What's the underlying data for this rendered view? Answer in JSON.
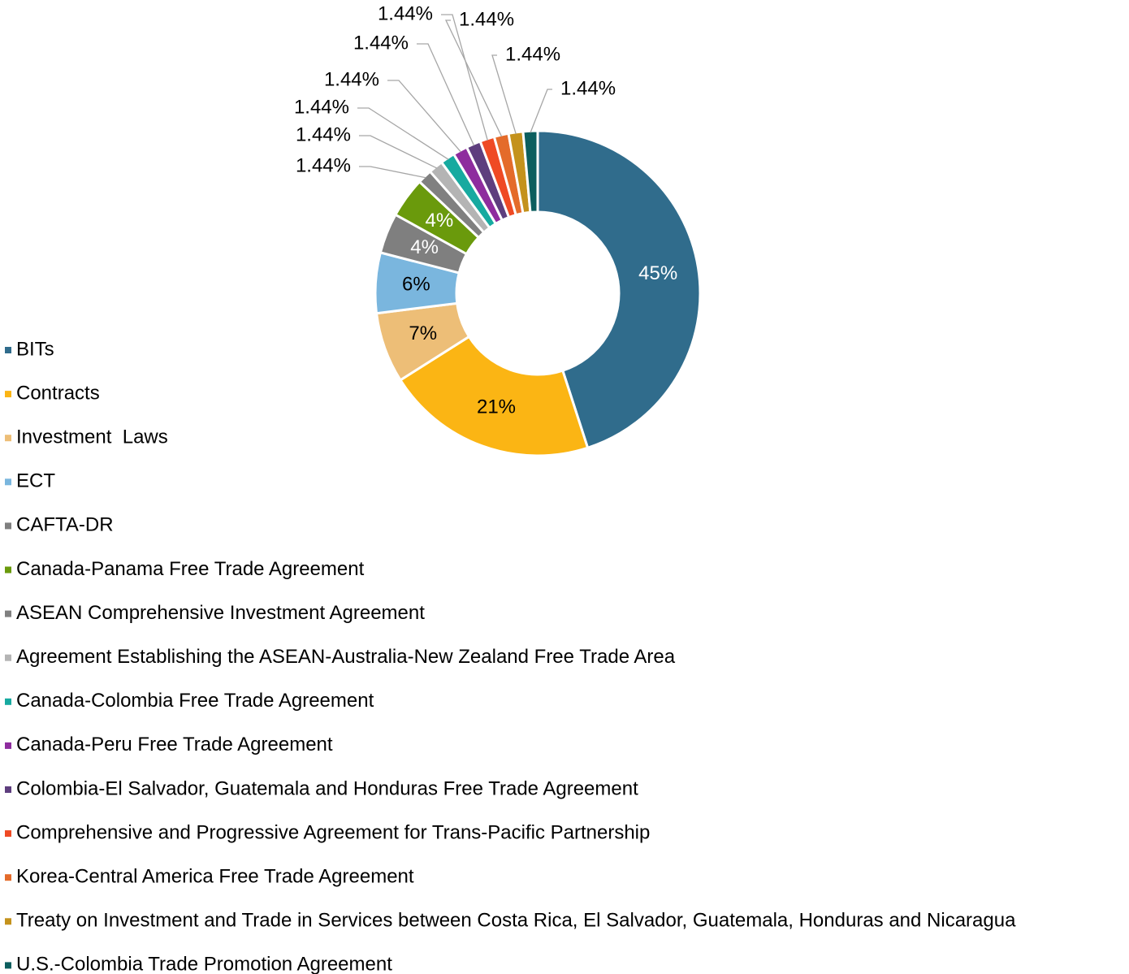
{
  "chart_data": {
    "type": "donut",
    "categories": [
      "BITs",
      "Contracts",
      "Investment  Laws",
      "ECT",
      "CAFTA-DR",
      "Canada-Panama Free Trade Agreement",
      "ASEAN Comprehensive Investment Agreement",
      "Agreement Establishing the ASEAN-Australia-New Zealand Free Trade Area",
      "Canada-Colombia Free Trade Agreement",
      "Canada-Peru Free Trade Agreement",
      "Colombia-El Salvador, Guatemala and Honduras Free Trade Agreement",
      "Comprehensive and Progressive Agreement for Trans-Pacific Partnership",
      "Korea-Central America Free Trade Agreement",
      "Treaty on Investment and Trade in Services between Costa Rica, El Salvador, Guatemala, Honduras and Nicaragua",
      "U.S.-Colombia Trade Promotion Agreement"
    ],
    "values": [
      45,
      21,
      7,
      6,
      4,
      4,
      1.44,
      1.44,
      1.44,
      1.44,
      1.44,
      1.44,
      1.44,
      1.44,
      1.44
    ],
    "value_labels": [
      "45%",
      "21%",
      "7%",
      "6%",
      "4%",
      "4%",
      "1.44%",
      "1.44%",
      "1.44%",
      "1.44%",
      "1.44%",
      "1.44%",
      "1.44%",
      "1.44%",
      "1.44%"
    ],
    "colors": [
      "#306c8c",
      "#fbb514",
      "#edbe77",
      "#7ab6de",
      "#7f7f7f",
      "#6a9a0c",
      "#808080",
      "#b4b4b4",
      "#17aaa0",
      "#8e2c9e",
      "#5e3e7e",
      "#ef4a24",
      "#e46b2a",
      "#c4921c",
      "#0c5e5e"
    ],
    "legend": "left"
  }
}
